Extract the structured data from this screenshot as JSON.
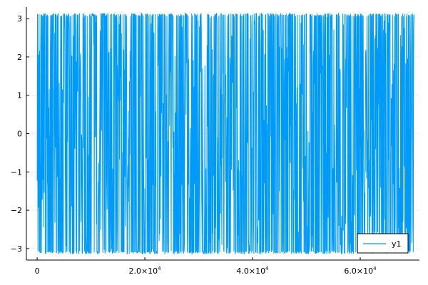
{
  "chart_data": {
    "type": "line",
    "title": "",
    "xlabel": "",
    "ylabel": "",
    "xlim": [
      -2000,
      71000
    ],
    "ylim": [
      -3.3,
      3.3
    ],
    "grid": true,
    "legend_position": "bottom-right",
    "x_ticks": [
      {
        "value": 0,
        "mantissa": "0",
        "exponent": ""
      },
      {
        "value": 20000,
        "mantissa": "2.0×10",
        "exponent": "4"
      },
      {
        "value": 40000,
        "mantissa": "4.0×10",
        "exponent": "4"
      },
      {
        "value": 60000,
        "mantissa": "6.0×10",
        "exponent": "4"
      }
    ],
    "y_ticks": [
      {
        "value": -3,
        "label": "−3"
      },
      {
        "value": -2,
        "label": "−2"
      },
      {
        "value": -1,
        "label": "−1"
      },
      {
        "value": 0,
        "label": "0"
      },
      {
        "value": 1,
        "label": "1"
      },
      {
        "value": 2,
        "label": "2"
      },
      {
        "value": 3,
        "label": "3"
      }
    ],
    "series": [
      {
        "name": "y1",
        "color": "#009af9",
        "x_range": [
          1,
          70000
        ],
        "y_range": [
          -3.14159,
          3.14159
        ],
        "pattern": "dense oscillation between −π and π across the full x range"
      }
    ]
  }
}
